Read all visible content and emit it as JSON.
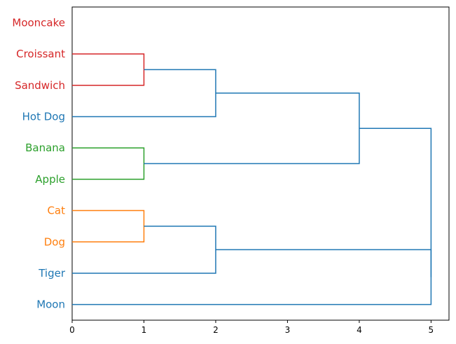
{
  "chart_data": {
    "type": "dendrogram",
    "orientation": "horizontal",
    "leaves": [
      {
        "label": "Mooncake",
        "color": "#d62728"
      },
      {
        "label": "Croissant",
        "color": "#d62728"
      },
      {
        "label": "Sandwich",
        "color": "#d62728"
      },
      {
        "label": "Hot Dog",
        "color": "#1f77b4"
      },
      {
        "label": "Banana",
        "color": "#2ca02c"
      },
      {
        "label": "Apple",
        "color": "#2ca02c"
      },
      {
        "label": "Cat",
        "color": "#ff7f0e"
      },
      {
        "label": "Dog",
        "color": "#ff7f0e"
      },
      {
        "label": "Tiger",
        "color": "#1f77b4"
      },
      {
        "label": "Moon",
        "color": "#1f77b4"
      }
    ],
    "merges": [
      {
        "children": [
          "Croissant",
          "Sandwich"
        ],
        "distance": 1,
        "color": "#d62728"
      },
      {
        "children": [
          "Croissant+Sandwich",
          "Hot Dog"
        ],
        "distance": 2,
        "color": "#1f77b4"
      },
      {
        "children": [
          "Banana",
          "Apple"
        ],
        "distance": 1,
        "color": "#2ca02c"
      },
      {
        "children": [
          "Croissant+Sandwich+Hot Dog",
          "Banana+Apple"
        ],
        "distance": 4,
        "color": "#1f77b4"
      },
      {
        "children": [
          "Cat",
          "Dog"
        ],
        "distance": 1,
        "color": "#ff7f0e"
      },
      {
        "children": [
          "Cat+Dog",
          "Tiger"
        ],
        "distance": 2,
        "color": "#1f77b4"
      },
      {
        "children": [
          "Cat+Dog+Tiger",
          "Moon"
        ],
        "distance": 5,
        "color": "#1f77b4"
      },
      {
        "children": [
          "Croissant+Sandwich+Hot Dog+Banana+Apple",
          "Cat+Dog+Tiger+Moon"
        ],
        "distance": 5,
        "color": "#1f77b4"
      }
    ],
    "x_ticks": [
      0,
      1,
      2,
      3,
      4,
      5
    ],
    "xlim": [
      0,
      5.25
    ],
    "title": "",
    "xlabel": "",
    "ylabel": "",
    "grid": false
  }
}
